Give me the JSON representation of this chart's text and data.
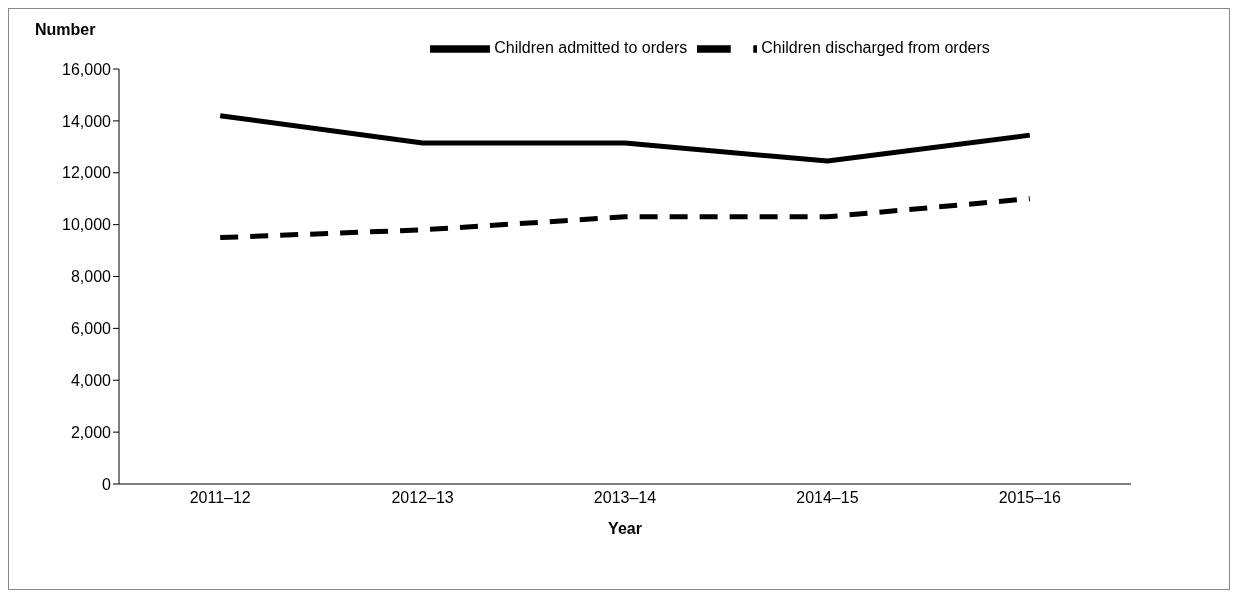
{
  "chart_data": {
    "type": "line",
    "xlabel": "Year",
    "ylabel": "Number",
    "categories": [
      "2011–12",
      "2012–13",
      "2013–14",
      "2014–15",
      "2015–16"
    ],
    "series": [
      {
        "name": "Children admitted to orders",
        "color": "#000000",
        "line_style": "solid",
        "values": [
          14200,
          13150,
          13150,
          12450,
          13450
        ]
      },
      {
        "name": "Children discharged from orders",
        "color": "#000000",
        "line_style": "dashed",
        "values": [
          9500,
          9800,
          10300,
          10300,
          11000
        ]
      }
    ],
    "ylim": [
      0,
      16000
    ],
    "yticks": [
      0,
      {
        "value": 2000,
        "label": "2,000"
      },
      {
        "value": 4000,
        "label": "4,000"
      },
      {
        "value": 6000,
        "label": "6,000"
      },
      {
        "value": 8000,
        "label": "8,000"
      },
      {
        "value": 10000,
        "label": "10,000"
      },
      {
        "value": 12000,
        "label": "12,000"
      },
      {
        "value": 14000,
        "label": "14,000"
      },
      {
        "value": 16000,
        "label": "16,000"
      }
    ],
    "grid": false,
    "legend": "top",
    "marker": "none"
  }
}
